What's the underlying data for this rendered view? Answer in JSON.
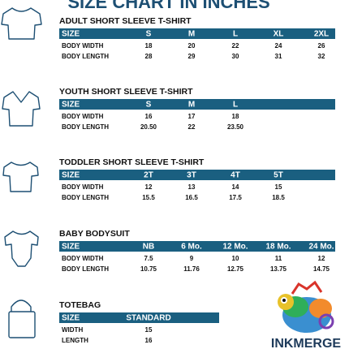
{
  "header": {
    "title": "SIZE CHART IN INCHES"
  },
  "sections": [
    {
      "title": "ADULT SHORT SLEEVE T-SHIRT",
      "columns": [
        "SIZE",
        "S",
        "M",
        "L",
        "XL",
        "2XL"
      ],
      "rows": [
        [
          "BODY WIDTH",
          "18",
          "20",
          "22",
          "24",
          "26"
        ],
        [
          "BODY LENGTH",
          "28",
          "29",
          "30",
          "31",
          "32"
        ]
      ]
    },
    {
      "title": "YOUTH SHORT SLEEVE T-SHIRT",
      "columns": [
        "SIZE",
        "S",
        "M",
        "L"
      ],
      "rows": [
        [
          "BODY WIDTH",
          "16",
          "17",
          "18"
        ],
        [
          "BODY LENGTH",
          "20.50",
          "22",
          "23.50"
        ]
      ]
    },
    {
      "title": "TODDLER SHORT SLEEVE T-SHIRT",
      "columns": [
        "SIZE",
        "2T",
        "3T",
        "4T",
        "5T"
      ],
      "rows": [
        [
          "BODY WIDTH",
          "12",
          "13",
          "14",
          "15"
        ],
        [
          "BODY LENGTH",
          "15.5",
          "16.5",
          "17.5",
          "18.5"
        ]
      ]
    },
    {
      "title": "BABY BODYSUIT",
      "columns": [
        "SIZE",
        "NB",
        "6 Mo.",
        "12 Mo.",
        "18 Mo.",
        "24 Mo."
      ],
      "rows": [
        [
          "BODY WIDTH",
          "7.5",
          "9",
          "10",
          "11",
          "12"
        ],
        [
          "BODY LENGTH",
          "10.75",
          "11.76",
          "12.75",
          "13.75",
          "14.75"
        ]
      ]
    },
    {
      "title": "TOTEBAG",
      "columns": [
        "SIZE",
        "STANDARD"
      ],
      "rows": [
        [
          "WIDTH",
          "15"
        ],
        [
          "LENGTH",
          "16"
        ]
      ]
    }
  ],
  "logo": {
    "text": "INKMERGE"
  }
}
